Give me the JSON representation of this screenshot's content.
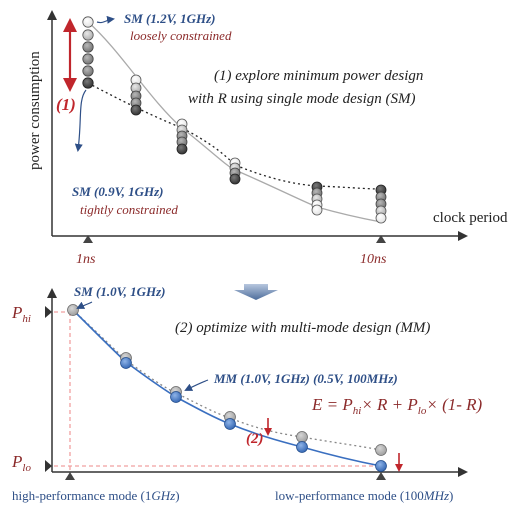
{
  "colors": {
    "axis": "#333333",
    "blue": "#2e4f87",
    "red": "#c0262c",
    "dark_red": "#8b2a2a",
    "pink_dashed": "#f0a0a0",
    "gray_curve": "#aaaaaa"
  },
  "top": {
    "ylabel": "power consumption",
    "xlabel": "clock period",
    "tick_start": "1ns",
    "tick_end": "10ns",
    "sm_high_title": "SM (1.2V, 1GHz)",
    "sm_high_sub": "loosely constrained",
    "sm_low_title": "SM (0.9V, 1GHz)",
    "sm_low_sub": "tightly constrained",
    "note_line1": "(1) explore minimum power design",
    "note_line2": "with R using single mode design (SM)",
    "marker": "(1)"
  },
  "bottom": {
    "p_hi_main": "P",
    "p_hi_sub": "hi",
    "p_lo_main": "P",
    "p_lo_sub": "lo",
    "sm_label": "SM (1.0V, 1GHz)",
    "note": "(2) optimize with multi-mode  design (MM)",
    "mm_label": "MM (1.0V, 1GHz) (0.5V, 100MHz)",
    "marker": "(2)",
    "eq_E": "E = P",
    "eq_hi": "hi",
    "eq_mid": "× R + P",
    "eq_lo": "lo",
    "eq_end": "× (1- R)",
    "mode_hi_prefix": "high-performance mode (1",
    "mode_hi_unit": "GHz",
    "mode_hi_suffix": ")",
    "mode_lo_prefix": "low-performance mode (100",
    "mode_lo_unit": "MHz",
    "mode_lo_suffix": ")"
  },
  "icons": {
    "transition_arrow": "down-arrow-icon"
  }
}
